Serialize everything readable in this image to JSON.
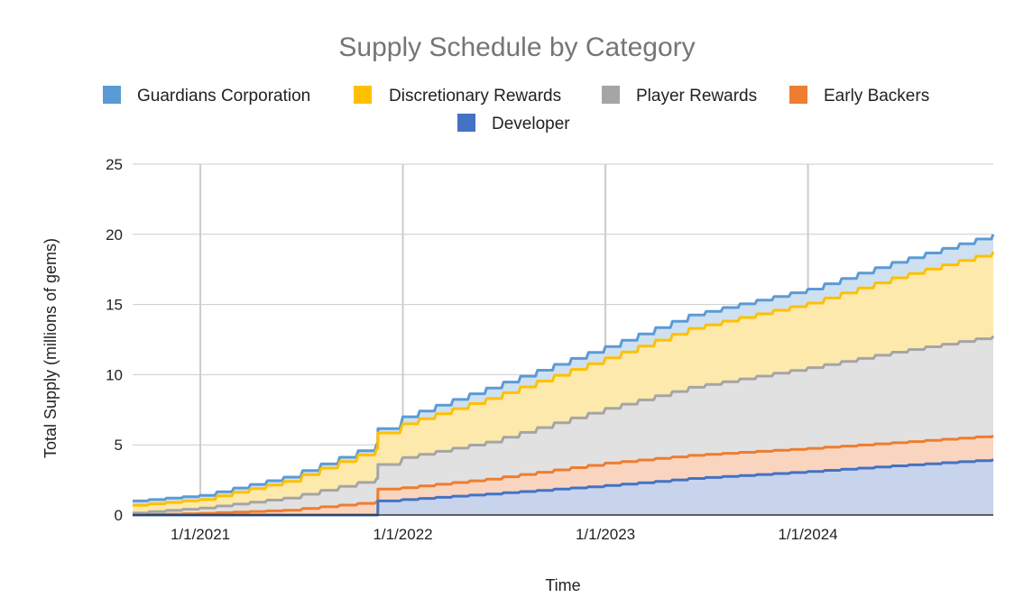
{
  "chart_data": {
    "type": "area",
    "stacked": true,
    "title": "Supply Schedule by Category",
    "xlabel": "Time",
    "ylabel": "Total Supply (millions of gems)",
    "ylim": [
      0,
      25
    ],
    "yticks": [
      "0",
      "5",
      "10",
      "15",
      "20",
      "25"
    ],
    "x_range": [
      "2020-09-01",
      "2024-11-30"
    ],
    "xticks": [
      {
        "date": "2021-01-01",
        "label": "1/1/2021"
      },
      {
        "date": "2022-01-01",
        "label": "1/1/2022"
      },
      {
        "date": "2023-01-01",
        "label": "1/1/2023"
      },
      {
        "date": "2024-01-01",
        "label": "1/1/2024"
      }
    ],
    "grid": true,
    "legend_position": "top",
    "x": [
      "2020-09-01",
      "2021-01-01",
      "2021-06-01",
      "2021-11-15",
      "2021-11-17",
      "2022-01-01",
      "2022-06-01",
      "2023-01-01",
      "2023-06-01",
      "2024-01-01",
      "2024-06-01",
      "2024-11-30"
    ],
    "series": [
      {
        "name": "Developer",
        "color": "#4472c4",
        "fill": "#c8d3ec",
        "values": [
          0,
          0,
          0,
          0,
          1.0,
          1.1,
          1.5,
          2.1,
          2.6,
          3.1,
          3.5,
          3.95
        ]
      },
      {
        "name": "Early Backers",
        "color": "#ed7d31",
        "fill": "#f9d5c0",
        "values": [
          0,
          0.12,
          0.34,
          0.95,
          0.85,
          0.85,
          1.06,
          1.6,
          1.65,
          1.65,
          1.65,
          1.7
        ]
      },
      {
        "name": "Player Rewards",
        "color": "#a5a5a5",
        "fill": "#e1e1e1",
        "values": [
          0.15,
          0.38,
          0.86,
          1.65,
          1.75,
          2.15,
          2.64,
          3.9,
          4.85,
          5.75,
          6.45,
          7.1
        ]
      },
      {
        "name": "Discretionary Rewards",
        "color": "#ffc000",
        "fill": "#fde9ac",
        "values": [
          0.55,
          0.6,
          1.2,
          2.15,
          2.25,
          2.4,
          3.1,
          3.6,
          4.2,
          4.6,
          5.3,
          6.0
        ]
      },
      {
        "name": "Guardians Corporation",
        "color": "#5b9bd5",
        "fill": "#cfe0f1",
        "values": [
          0.3,
          0.3,
          0.3,
          0.3,
          0.3,
          0.5,
          0.75,
          0.8,
          0.95,
          1.0,
          1.1,
          1.25
        ]
      }
    ]
  }
}
